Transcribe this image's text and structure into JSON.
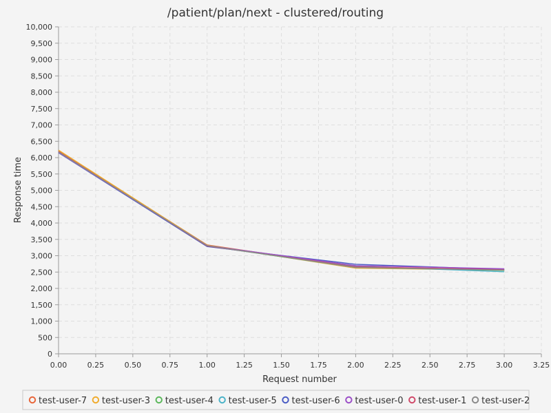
{
  "chart_data": {
    "type": "line",
    "title": "/patient/plan/next - clustered/routing",
    "xlabel": "Request number",
    "ylabel": "Response time",
    "xlim": [
      0,
      3.25
    ],
    "ylim": [
      0,
      10000
    ],
    "x_ticks": [
      "0.00",
      "0.25",
      "0.50",
      "0.75",
      "1.00",
      "1.25",
      "1.50",
      "1.75",
      "2.00",
      "2.25",
      "2.50",
      "2.75",
      "3.00",
      "3.25"
    ],
    "y_ticks": [
      "0",
      "500",
      "1,000",
      "1,500",
      "2,000",
      "2,500",
      "3,000",
      "3,500",
      "4,000",
      "4,500",
      "5,000",
      "5,500",
      "6,000",
      "6,500",
      "7,000",
      "7,500",
      "8,000",
      "8,500",
      "9,000",
      "9,500",
      "10,000"
    ],
    "grid": true,
    "legend_position": "bottom",
    "x": [
      0,
      1,
      2,
      3
    ],
    "series": [
      {
        "name": "test-user-7",
        "color": "#e8663a",
        "values": [
          6200,
          3330,
          2650,
          2580
        ]
      },
      {
        "name": "test-user-3",
        "color": "#f0ac2e",
        "values": [
          6230,
          3320,
          2620,
          2560
        ]
      },
      {
        "name": "test-user-4",
        "color": "#5cb85c",
        "values": [
          6180,
          3300,
          2640,
          2550
        ]
      },
      {
        "name": "test-user-5",
        "color": "#4bb3c8",
        "values": [
          6170,
          3290,
          2680,
          2510
        ]
      },
      {
        "name": "test-user-6",
        "color": "#4a5cc4",
        "values": [
          6150,
          3280,
          2740,
          2580
        ]
      },
      {
        "name": "test-user-0",
        "color": "#9c4fc8",
        "values": [
          6160,
          3310,
          2700,
          2600
        ]
      },
      {
        "name": "test-user-1",
        "color": "#d04a6a",
        "values": [
          6180,
          3300,
          2660,
          2570
        ]
      },
      {
        "name": "test-user-2",
        "color": "#8a8a8a",
        "values": [
          6170,
          3310,
          2640,
          2560
        ]
      }
    ]
  }
}
